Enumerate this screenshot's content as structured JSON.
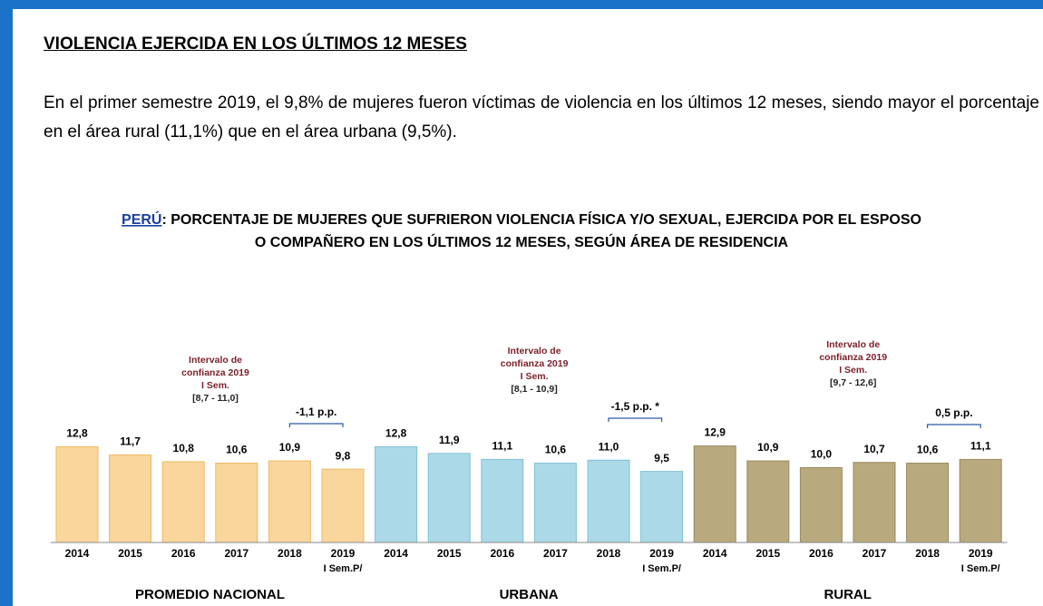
{
  "heading": "VIOLENCIA EJERCIDA EN LOS ÚLTIMOS 12 MESES",
  "paragraph": "En el primer semestre 2019, el 9,8% de mujeres fueron víctimas de violencia en los últimos 12 meses, siendo mayor el porcentaje en el área rural (11,1%) que en el área urbana (9,5%).",
  "chart_data": {
    "type": "bar",
    "title": [
      "PERÚ",
      ": PORCENTAJE DE MUJERES QUE SUFRIERON VIOLENCIA FÍSICA Y/O SEXUAL, EJERCIDA POR EL ESPOSO",
      "O COMPAÑERO EN LOS ÚLTIMOS 12 MESES, SEGÚN ÁREA DE RESIDENCIA"
    ],
    "categories": [
      "2014",
      "2015",
      "2016",
      "2017",
      "2018",
      "2019"
    ],
    "category_note": "I Sem.P/",
    "ylim": [
      0,
      16
    ],
    "series": [
      {
        "name": "PROMEDIO NACIONAL",
        "color": "#f9d69c",
        "edge": "#eeb965",
        "values": [
          12.8,
          11.7,
          10.8,
          10.6,
          10.9,
          9.8
        ],
        "value_labels": [
          "12,8",
          "11,7",
          "10,8",
          "10,6",
          "10,9",
          "9,8"
        ],
        "annotation": [
          "Intervalo de",
          "confianza 2019",
          "I Sem.",
          "[8,7 - 11,0]"
        ],
        "change": "-1,1 p.p."
      },
      {
        "name": "URBANA",
        "color": "#acd9e7",
        "edge": "#7fc0d6",
        "values": [
          12.8,
          11.9,
          11.1,
          10.6,
          11.0,
          9.5
        ],
        "value_labels": [
          "12,8",
          "11,9",
          "11,1",
          "10,6",
          "11,0",
          "9,5"
        ],
        "annotation": [
          "Intervalo de",
          "confianza 2019",
          "I Sem.",
          "[8,1 - 10,9]"
        ],
        "change": "-1,5 p.p. *"
      },
      {
        "name": "RURAL",
        "color": "#b8aa7e",
        "edge": "#998b5d",
        "values": [
          12.9,
          10.9,
          10.0,
          10.7,
          10.6,
          11.1
        ],
        "value_labels": [
          "12,9",
          "10,9",
          "10,0",
          "10,7",
          "10,6",
          "11,1"
        ],
        "annotation": [
          "Intervalo de",
          "confianza 2019",
          "I Sem.",
          "[9,7 - 12,6]"
        ],
        "change": "0,5 p.p."
      }
    ]
  }
}
